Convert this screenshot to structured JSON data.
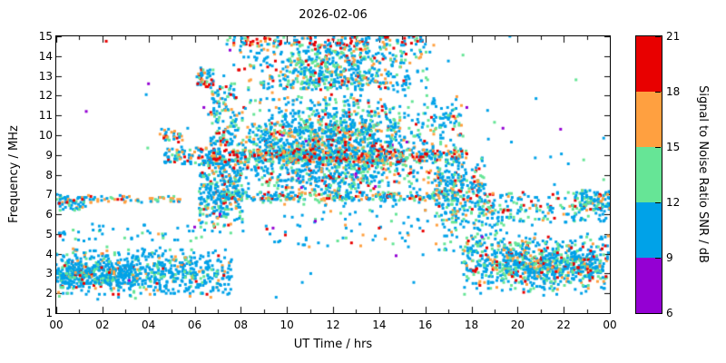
{
  "title": "2026-02-06",
  "chart_data": {
    "type": "scatter",
    "title": "2026-02-06",
    "xlabel": "UT Time / hrs",
    "ylabel": "Frequency / MHz",
    "xlim": [
      0,
      24
    ],
    "ylim": [
      1,
      15
    ],
    "x_tick_values": [
      0,
      2,
      4,
      6,
      8,
      10,
      12,
      14,
      16,
      18,
      20,
      22,
      24
    ],
    "x_tick_labels": [
      "00",
      "02",
      "04",
      "06",
      "08",
      "10",
      "12",
      "14",
      "16",
      "18",
      "20",
      "22",
      "00"
    ],
    "x_minor_step": 1,
    "y_tick_values": [
      1,
      2,
      3,
      4,
      5,
      6,
      7,
      8,
      9,
      10,
      11,
      12,
      13,
      14,
      15
    ],
    "grid": false,
    "colorbar": {
      "label": "Signal to Noise Ratio SNR / dB",
      "min": 6,
      "max": 21,
      "tick_values": [
        6,
        9,
        12,
        15,
        18,
        21
      ],
      "bins": [
        {
          "range": [
            6,
            9
          ],
          "name": "purple",
          "color": "#9400d3"
        },
        {
          "range": [
            9,
            12
          ],
          "name": "blue",
          "color": "#00a2e8"
        },
        {
          "range": [
            12,
            15
          ],
          "name": "green",
          "color": "#66e596"
        },
        {
          "range": [
            15,
            18
          ],
          "name": "orange",
          "color": "#ffa040"
        },
        {
          "range": [
            18,
            21
          ],
          "name": "red",
          "color": "#e80000"
        }
      ]
    },
    "palette": {
      "purple": "#9400d3",
      "blue": "#00a2e8",
      "green": "#66e596",
      "orange": "#ffa040",
      "red": "#e80000"
    },
    "seed": 7,
    "point_size": 3,
    "clusters": [
      {
        "t": [
          0,
          7.6
        ],
        "f": [
          1.7,
          4.4
        ],
        "n": 700,
        "fshape": "center",
        "w": {
          "b": 0.72,
          "g": 0.16,
          "o": 0.07,
          "r": 0.05
        }
      },
      {
        "t": [
          0.2,
          3.4
        ],
        "f": [
          2.2,
          3.7
        ],
        "n": 260,
        "fshape": "center",
        "w": {
          "b": 0.7,
          "g": 0.18,
          "o": 0.07,
          "r": 0.05
        }
      },
      {
        "t": [
          0,
          6.2
        ],
        "f": [
          4.6,
          5.5
        ],
        "n": 45,
        "w": {
          "b": 0.75,
          "g": 0.15,
          "o": 0.06,
          "r": 0.04
        }
      },
      {
        "t": [
          0,
          5.4
        ],
        "f": [
          6.6,
          6.95
        ],
        "n": 75,
        "w": {
          "b": 0.3,
          "g": 0.2,
          "o": 0.38,
          "r": 0.12
        }
      },
      {
        "t": [
          0,
          1.3
        ],
        "f": [
          6.2,
          7.0
        ],
        "n": 50,
        "w": {
          "b": 0.7,
          "g": 0.2,
          "o": 0.07,
          "r": 0.03
        }
      },
      {
        "t": [
          4.7,
          6.9
        ],
        "f": [
          8.55,
          9.35
        ],
        "n": 95,
        "w": {
          "b": 0.5,
          "g": 0.2,
          "o": 0.18,
          "r": 0.12
        }
      },
      {
        "t": [
          4.5,
          5.5
        ],
        "f": [
          9.6,
          10.3
        ],
        "n": 28,
        "w": {
          "b": 0.35,
          "g": 0.15,
          "o": 0.25,
          "r": 0.25
        }
      },
      {
        "t": [
          6.2,
          8.1
        ],
        "f": [
          4.8,
          9.6
        ],
        "n": 330,
        "fshape": "center",
        "w": {
          "b": 0.6,
          "g": 0.2,
          "o": 0.12,
          "r": 0.08
        }
      },
      {
        "t": [
          6.1,
          6.8
        ],
        "f": [
          12.4,
          13.4
        ],
        "n": 45,
        "w": {
          "b": 0.35,
          "g": 0.2,
          "o": 0.2,
          "r": 0.25
        }
      },
      {
        "t": [
          6.6,
          7.8
        ],
        "f": [
          9.5,
          12.6
        ],
        "n": 130,
        "w": {
          "b": 0.6,
          "g": 0.22,
          "o": 0.11,
          "r": 0.07
        }
      },
      {
        "t": [
          7.0,
          17.0
        ],
        "f": [
          6.3,
          12.3
        ],
        "n": 1750,
        "fshape": "center",
        "tshape": "center",
        "w": {
          "p": 0.01,
          "b": 0.57,
          "g": 0.24,
          "o": 0.11,
          "r": 0.07
        }
      },
      {
        "t": [
          7.6,
          16.4
        ],
        "f": [
          12.3,
          14.6
        ],
        "n": 650,
        "tshape": "center",
        "w": {
          "b": 0.55,
          "g": 0.24,
          "o": 0.12,
          "r": 0.09
        }
      },
      {
        "t": [
          7.4,
          15.9
        ],
        "f": [
          14.55,
          15.0
        ],
        "n": 140,
        "w": {
          "b": 0.33,
          "g": 0.2,
          "o": 0.17,
          "r": 0.3
        }
      },
      {
        "t": [
          6.8,
          17.8
        ],
        "f": [
          8.65,
          9.25
        ],
        "n": 420,
        "w": {
          "b": 0.34,
          "g": 0.2,
          "o": 0.21,
          "r": 0.25
        }
      },
      {
        "t": [
          7.0,
          17.4
        ],
        "f": [
          6.7,
          7.1
        ],
        "n": 250,
        "w": {
          "b": 0.45,
          "g": 0.25,
          "o": 0.18,
          "r": 0.12
        }
      },
      {
        "t": [
          16.4,
          18.6
        ],
        "f": [
          5.2,
          9.3
        ],
        "n": 260,
        "fshape": "center",
        "w": {
          "b": 0.6,
          "g": 0.2,
          "o": 0.12,
          "r": 0.08
        }
      },
      {
        "t": [
          16.2,
          17.6
        ],
        "f": [
          9.3,
          12.0
        ],
        "n": 70,
        "w": {
          "b": 0.6,
          "g": 0.25,
          "o": 0.1,
          "r": 0.05
        }
      },
      {
        "t": [
          16.8,
          19.4
        ],
        "f": [
          4.1,
          6.2
        ],
        "n": 90,
        "w": {
          "b": 0.65,
          "g": 0.2,
          "o": 0.1,
          "r": 0.05
        }
      },
      {
        "t": [
          17.6,
          24
        ],
        "f": [
          1.9,
          5.1
        ],
        "n": 620,
        "fshape": "center",
        "w": {
          "b": 0.6,
          "g": 0.2,
          "o": 0.11,
          "r": 0.09
        }
      },
      {
        "t": [
          19.4,
          23.3
        ],
        "f": [
          2.3,
          4.7
        ],
        "n": 300,
        "fshape": "center",
        "w": {
          "b": 0.6,
          "g": 0.2,
          "o": 0.12,
          "r": 0.08
        }
      },
      {
        "t": [
          18.2,
          24
        ],
        "f": [
          5.6,
          7.1
        ],
        "n": 190,
        "w": {
          "b": 0.6,
          "g": 0.25,
          "o": 0.1,
          "r": 0.05
        }
      },
      {
        "t": [
          22.7,
          24
        ],
        "f": [
          6.2,
          7.2
        ],
        "n": 85,
        "w": {
          "b": 0.55,
          "g": 0.25,
          "o": 0.13,
          "r": 0.07
        }
      },
      {
        "t": [
          8.1,
          16.5
        ],
        "f": [
          4.3,
          6.2
        ],
        "n": 70,
        "w": {
          "b": 0.7,
          "g": 0.2,
          "o": 0.06,
          "r": 0.04
        }
      },
      {
        "t": [
          0,
          24
        ],
        "f": [
          1.5,
          15.0
        ],
        "n": 60,
        "w": {
          "b": 0.7,
          "g": 0.2,
          "o": 0.05,
          "r": 0.05
        }
      },
      {
        "t": [
          0,
          24
        ],
        "f": [
          1.8,
          14.8
        ],
        "n": 15,
        "w": {
          "p": 1
        }
      }
    ]
  }
}
